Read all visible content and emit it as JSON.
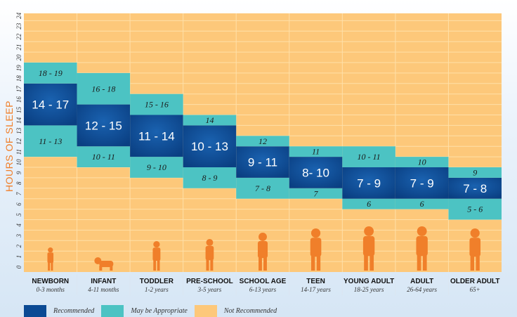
{
  "chart_data": {
    "type": "bar",
    "ylabel": "HOURS OF SLEEP",
    "ylim": [
      0,
      24
    ],
    "yticks": [
      0,
      1,
      2,
      3,
      4,
      5,
      6,
      7,
      8,
      9,
      10,
      11,
      12,
      13,
      14,
      15,
      16,
      17,
      18,
      19,
      20,
      21,
      22,
      23,
      24
    ],
    "grid": true,
    "legend_position": "bottom-left",
    "categories": [
      {
        "name": "NEWBORN",
        "age": "0-3 months"
      },
      {
        "name": "INFANT",
        "age": "4-11 months"
      },
      {
        "name": "TODDLER",
        "age": "1-2 years"
      },
      {
        "name": "PRE-SCHOOL",
        "age": "3-5 years"
      },
      {
        "name": "SCHOOL AGE",
        "age": "6-13 years"
      },
      {
        "name": "TEEN",
        "age": "14-17 years"
      },
      {
        "name": "YOUNG ADULT",
        "age": "18-25 years"
      },
      {
        "name": "ADULT",
        "age": "26-64 years"
      },
      {
        "name": "OLDER ADULT",
        "age": "65+"
      }
    ],
    "series": [
      {
        "name": "May be Appropriate",
        "key": "low",
        "color": "#4cc3c3",
        "ranges": [
          [
            11,
            13
          ],
          [
            10,
            11
          ],
          [
            9,
            10
          ],
          [
            8,
            9
          ],
          [
            7,
            8
          ],
          [
            7,
            7
          ],
          [
            6,
            6
          ],
          [
            6,
            6
          ],
          [
            5,
            6
          ]
        ],
        "labels": [
          "11 - 13",
          "10 - 11",
          "9 - 10",
          "8 - 9",
          "7 - 8",
          "7",
          "6",
          "6",
          "5 - 6"
        ]
      },
      {
        "name": "Recommended",
        "key": "rec",
        "color": "#0b4a94",
        "ranges": [
          [
            14,
            17
          ],
          [
            12,
            15
          ],
          [
            11,
            14
          ],
          [
            10,
            13
          ],
          [
            9,
            11
          ],
          [
            8,
            10
          ],
          [
            7,
            9
          ],
          [
            7,
            9
          ],
          [
            7,
            8
          ]
        ],
        "labels": [
          "14 - 17",
          "12 - 15",
          "11 - 14",
          "10 - 13",
          "9 - 11",
          "8- 10",
          "7 - 9",
          "7 - 9",
          "7 - 8"
        ]
      },
      {
        "name": "May be Appropriate",
        "key": "high",
        "color": "#4cc3c3",
        "ranges": [
          [
            18,
            19
          ],
          [
            16,
            18
          ],
          [
            15,
            16
          ],
          [
            14,
            14
          ],
          [
            12,
            12
          ],
          [
            11,
            11
          ],
          [
            10,
            11
          ],
          [
            10,
            10
          ],
          [
            9,
            9
          ]
        ],
        "labels": [
          "18 - 19",
          "16 - 18",
          "15 - 16",
          "14",
          "12",
          "11",
          "10 - 11",
          "10",
          "9"
        ]
      }
    ],
    "legend": [
      {
        "label": "Recommended",
        "color": "#0b4a94"
      },
      {
        "label": "May be Appropriate",
        "color": "#4cc3c3"
      },
      {
        "label": "Not Recommended",
        "color": "#fdc87a"
      }
    ]
  }
}
